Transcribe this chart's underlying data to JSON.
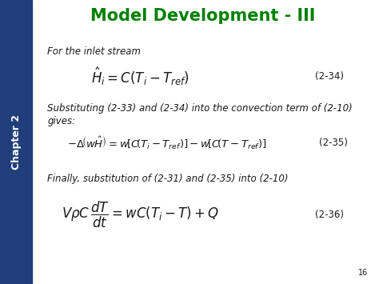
{
  "title": "Model Development - III",
  "title_color": "#008000",
  "title_fontsize": 15,
  "sidebar_color": "#1F3E7A",
  "sidebar_text": "Chapter 2",
  "sidebar_text_color": "#FFFFFF",
  "bg_color": "#F2F2F2",
  "slide_number": "16",
  "text1": "For the inlet stream",
  "eq1_label": "(2-34)",
  "text2a": "Substituting (2-33) and (2-34) into the convection term of (2-10)",
  "text2b": "gives:",
  "eq2_label": "(2-35)",
  "text3": "Finally, substitution of (2-31) and (2-35) into (2-10)",
  "eq3_label": "(2-36)",
  "body_fontsize": 8.5,
  "eq_fontsize": 10,
  "label_fontsize": 8.5,
  "text_color": "#1A1A1A"
}
